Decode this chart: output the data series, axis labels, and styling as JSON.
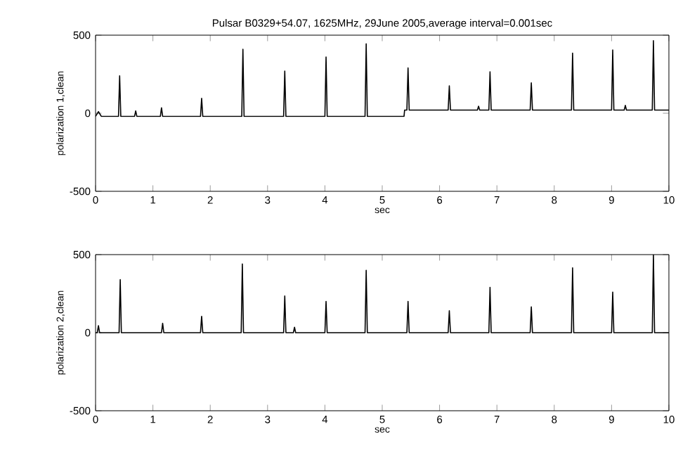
{
  "chart_data": [
    {
      "type": "line",
      "title": "Pulsar B0329+54.07, 1625MHz, 29June 2005,average interval=0.001sec",
      "xlabel": "sec",
      "ylabel": "polarization 1,clean",
      "xlim": [
        0,
        10
      ],
      "ylim": [
        -500,
        500
      ],
      "xticks": [
        0,
        1,
        2,
        3,
        4,
        5,
        6,
        7,
        8,
        9,
        10
      ],
      "yticks": [
        -500,
        0,
        500
      ],
      "series": [
        {
          "color": "#000000",
          "x": [
            0,
            0.05,
            0.1,
            0.4,
            0.42,
            0.44,
            0.68,
            0.7,
            0.72,
            1.13,
            1.15,
            1.17,
            1.83,
            1.85,
            1.87,
            2.55,
            2.57,
            2.59,
            3.28,
            3.3,
            3.32,
            4.0,
            4.02,
            4.04,
            4.7,
            4.72,
            4.74,
            5.38,
            5.39,
            5.43,
            5.45,
            5.47,
            6.15,
            6.17,
            6.19,
            6.66,
            6.68,
            6.7,
            6.86,
            6.88,
            6.9,
            7.58,
            7.6,
            7.62,
            8.3,
            8.32,
            8.34,
            9.0,
            9.02,
            9.04,
            9.22,
            9.24,
            9.26,
            9.71,
            9.73,
            9.75,
            10
          ],
          "values": [
            -20,
            10,
            -20,
            -20,
            240,
            -20,
            -20,
            15,
            -20,
            -20,
            35,
            -20,
            -20,
            95,
            -20,
            -20,
            410,
            -20,
            -20,
            270,
            -20,
            -20,
            360,
            -20,
            -20,
            445,
            -20,
            -20,
            20,
            20,
            290,
            20,
            20,
            175,
            20,
            20,
            45,
            20,
            20,
            265,
            20,
            20,
            195,
            20,
            20,
            385,
            20,
            20,
            405,
            20,
            20,
            50,
            20,
            20,
            465,
            20,
            20
          ]
        }
      ]
    },
    {
      "type": "line",
      "xlabel": "sec",
      "ylabel": "polarization 2,clean",
      "xlim": [
        0,
        10
      ],
      "ylim": [
        -500,
        500
      ],
      "xticks": [
        0,
        1,
        2,
        3,
        4,
        5,
        6,
        7,
        8,
        9,
        10
      ],
      "yticks": [
        -500,
        0,
        500
      ],
      "series": [
        {
          "color": "#000000",
          "x": [
            0,
            0.03,
            0.05,
            0.07,
            0.41,
            0.43,
            0.45,
            1.15,
            1.17,
            1.19,
            1.83,
            1.85,
            1.87,
            2.54,
            2.56,
            2.58,
            3.28,
            3.3,
            3.32,
            3.45,
            3.47,
            3.49,
            4.0,
            4.02,
            4.04,
            4.7,
            4.72,
            4.74,
            5.43,
            5.45,
            5.47,
            6.15,
            6.17,
            6.19,
            6.86,
            6.88,
            6.9,
            7.58,
            7.6,
            7.62,
            8.3,
            8.32,
            8.34,
            9.0,
            9.02,
            9.04,
            9.71,
            9.73,
            9.75,
            10
          ],
          "values": [
            0,
            0,
            45,
            0,
            0,
            340,
            0,
            0,
            60,
            0,
            0,
            105,
            0,
            0,
            440,
            0,
            0,
            235,
            0,
            0,
            35,
            0,
            0,
            200,
            0,
            0,
            400,
            0,
            0,
            200,
            0,
            0,
            140,
            0,
            0,
            290,
            0,
            0,
            165,
            0,
            0,
            415,
            0,
            0,
            260,
            0,
            0,
            500,
            0,
            0
          ]
        }
      ]
    }
  ]
}
